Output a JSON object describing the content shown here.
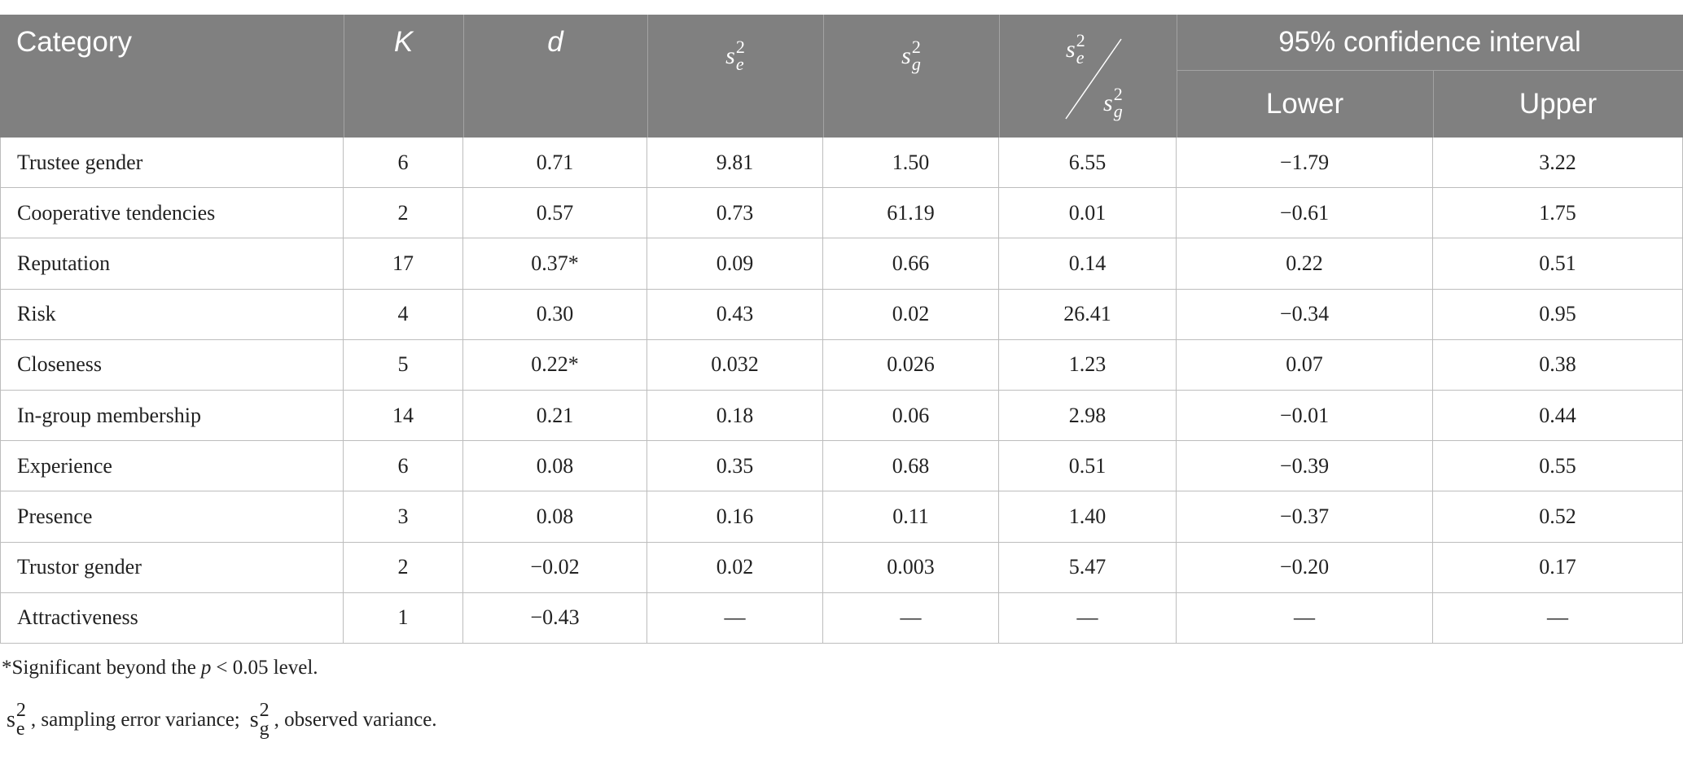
{
  "table": {
    "header": {
      "category": "Category",
      "k": "K",
      "d": "d",
      "se2": {
        "base": "s",
        "sub": "e",
        "sup": "2"
      },
      "sg2": {
        "base": "s",
        "sub": "g",
        "sup": "2"
      },
      "ratio": {
        "numerator": {
          "base": "s",
          "sub": "e",
          "sup": "2"
        },
        "denominator": {
          "base": "s",
          "sub": "g",
          "sup": "2"
        }
      },
      "ci": "95% confidence interval",
      "lower": "Lower",
      "upper": "Upper"
    },
    "rows": [
      [
        "Trustee gender",
        "6",
        "0.71",
        "9.81",
        "1.50",
        "6.55",
        "−1.79",
        "3.22"
      ],
      [
        "Cooperative tendencies",
        "2",
        "0.57",
        "0.73",
        "61.19",
        "0.01",
        "−0.61",
        "1.75"
      ],
      [
        "Reputation",
        "17",
        "0.37*",
        "0.09",
        "0.66",
        "0.14",
        "0.22",
        "0.51"
      ],
      [
        "Risk",
        "4",
        "0.30",
        "0.43",
        "0.02",
        "26.41",
        "−0.34",
        "0.95"
      ],
      [
        "Closeness",
        "5",
        "0.22*",
        "0.032",
        "0.026",
        "1.23",
        "0.07",
        "0.38"
      ],
      [
        "In-group membership",
        "14",
        "0.21",
        "0.18",
        "0.06",
        "2.98",
        "−0.01",
        "0.44"
      ],
      [
        "Experience",
        "6",
        "0.08",
        "0.35",
        "0.68",
        "0.51",
        "−0.39",
        "0.55"
      ],
      [
        "Presence",
        "3",
        "0.08",
        "0.16",
        "0.11",
        "1.40",
        "−0.37",
        "0.52"
      ],
      [
        "Trustor gender",
        "2",
        "−0.02",
        "0.02",
        "0.003",
        "5.47",
        "−0.20",
        "0.17"
      ],
      [
        "Attractiveness",
        "1",
        "−0.43",
        "—",
        "—",
        "—",
        "—",
        "—"
      ]
    ]
  },
  "footnotes": {
    "significance": {
      "before": "*Significant beyond the",
      "p": "p",
      "after": "< 0.05 level."
    },
    "definitions": {
      "se2": {
        "base": "s",
        "sub": "e",
        "sup": "2"
      },
      "se2_text": ", sampling error variance;",
      "sg2": {
        "base": "s",
        "sub": "g",
        "sup": "2"
      },
      "sg2_text": ", observed variance."
    }
  }
}
